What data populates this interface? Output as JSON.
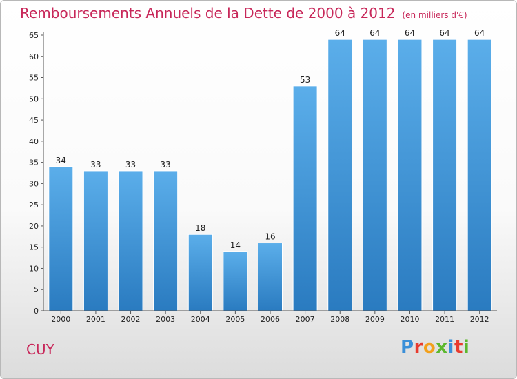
{
  "header": {
    "title": "Remboursements Annuels de la Dette de 2000 à 2012",
    "unit": "(en milliers d'€)"
  },
  "commune": "CUY",
  "logo": {
    "letters": [
      "P",
      "r",
      "o",
      "x",
      "i",
      "t",
      "i"
    ],
    "colors": [
      "#3a8fd8",
      "#e83b2e",
      "#f2a01c",
      "#5cb82e",
      "#3a8fd8",
      "#e83b2e",
      "#5cb82e"
    ]
  },
  "colors": {
    "bar_light": "#5baeea",
    "bar_dark": "#2a7bc0",
    "axis": "#555555",
    "text": "#222222"
  },
  "chart_data": {
    "type": "bar",
    "title": "Remboursements Annuels de la Dette de 2000 à 2012",
    "xlabel": "",
    "ylabel": "",
    "categories": [
      "2000",
      "2001",
      "2002",
      "2003",
      "2004",
      "2005",
      "2006",
      "2007",
      "2008",
      "2009",
      "2010",
      "2011",
      "2012"
    ],
    "values": [
      34,
      33,
      33,
      33,
      18,
      14,
      16,
      53,
      64,
      64,
      64,
      64,
      64
    ],
    "ylim": [
      0,
      65
    ],
    "yticks": [
      0,
      5,
      10,
      15,
      20,
      25,
      30,
      35,
      40,
      45,
      50,
      55,
      60,
      65
    ],
    "grid": false,
    "legend": "none"
  }
}
